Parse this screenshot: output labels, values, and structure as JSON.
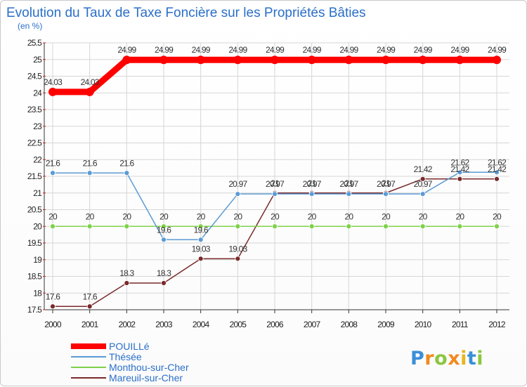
{
  "chart_data": {
    "type": "line",
    "title": "Evolution du Taux de Taxe Foncière sur les Propriétés Bâties",
    "subtitle": "(en %)",
    "xlabel": "",
    "ylabel": "(en %)",
    "x": [
      "2000",
      "2001",
      "2002",
      "2003",
      "2004",
      "2005",
      "2006",
      "2007",
      "2008",
      "2009",
      "2010",
      "2011",
      "2012"
    ],
    "ylim": [
      17.5,
      25.5
    ],
    "yticks": [
      "17.5",
      "18",
      "18.5",
      "19",
      "19.5",
      "20",
      "20.5",
      "21",
      "21.5",
      "22",
      "22.5",
      "23",
      "23.5",
      "24",
      "24.5",
      "25",
      "25.5"
    ],
    "grid": true,
    "legend_position": "bottom-left",
    "series": [
      {
        "name": "Mareuil-sur-Cher",
        "color": "#7a2a2a",
        "values": [
          17.6,
          17.6,
          18.3,
          18.3,
          19.03,
          19.03,
          21,
          21,
          21,
          21,
          21.42,
          21.42,
          21.42
        ],
        "labels": [
          "17.6",
          "17.6",
          "18.3",
          "18.3",
          "19.03",
          "19.03",
          "21",
          "21",
          "21",
          "21",
          "21.42",
          "21.42",
          "21.42"
        ]
      },
      {
        "name": "Monthou-sur-Cher",
        "color": "#7fd14a",
        "values": [
          20,
          20,
          20,
          20,
          20,
          20,
          20,
          20,
          20,
          20,
          20,
          20,
          20
        ],
        "labels": [
          "20",
          "20",
          "20",
          "20",
          "20",
          "20",
          "20",
          "20",
          "20",
          "20",
          "20",
          "20",
          "20"
        ]
      },
      {
        "name": "Thésée",
        "color": "#5b9bd5",
        "values": [
          21.6,
          21.6,
          21.6,
          19.6,
          19.6,
          20.97,
          20.97,
          20.97,
          20.97,
          20.97,
          20.97,
          21.62,
          21.62
        ],
        "labels": [
          "21.6",
          "21.6",
          "21.6",
          "19.6",
          "19.6",
          "20.97",
          "20.97",
          "20.97",
          "20.97",
          "20.97",
          "20.97",
          "21.62",
          "21.62"
        ]
      },
      {
        "name": "POUILLé",
        "color": "#ff0000",
        "values": [
          24.03,
          24.03,
          24.99,
          24.99,
          24.99,
          24.99,
          24.99,
          24.99,
          24.99,
          24.99,
          24.99,
          24.99,
          24.99
        ],
        "labels": [
          "24.03",
          "24.03",
          "24.99",
          "24.99",
          "24.99",
          "24.99",
          "24.99",
          "24.99",
          "24.99",
          "24.99",
          "24.99",
          "24.99",
          "24.99"
        ]
      }
    ],
    "legend": [
      "POUILLé",
      "Thésée",
      "Monthou-sur-Cher",
      "Mareuil-sur-Cher"
    ]
  },
  "brand": {
    "letters": [
      "P",
      "r",
      "o",
      "x",
      "i",
      "t",
      "i"
    ],
    "colors": [
      "#3a8fd8",
      "#f28a1e",
      "#8cc63f",
      "#f28a1e",
      "#e8b51a",
      "#3a8fd8",
      "#8cc63f"
    ]
  }
}
